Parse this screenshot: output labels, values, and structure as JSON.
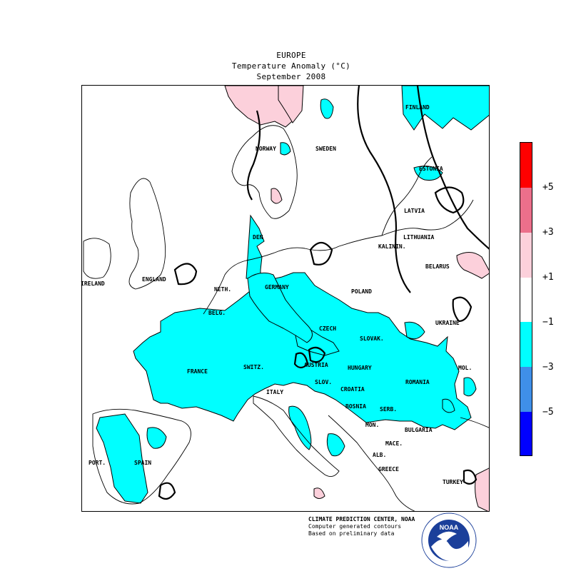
{
  "header": {
    "region": "EUROPE",
    "variable": "Temperature Anomaly (°C)",
    "period": "September 2008"
  },
  "countries": [
    {
      "id": "finland",
      "label": "FINLAND"
    },
    {
      "id": "norway",
      "label": "NORWAY"
    },
    {
      "id": "sweden",
      "label": "SWEDEN"
    },
    {
      "id": "estonia",
      "label": "ESTONIA"
    },
    {
      "id": "latvia",
      "label": "LATVIA"
    },
    {
      "id": "den",
      "label": "DEN"
    },
    {
      "id": "lithuania",
      "label": "LITHUANIA"
    },
    {
      "id": "kalinin",
      "label": "KALININ."
    },
    {
      "id": "belarus",
      "label": "BELARUS"
    },
    {
      "id": "ireland",
      "label": "IRELAND"
    },
    {
      "id": "england",
      "label": "ENGLAND"
    },
    {
      "id": "neth",
      "label": "NETH."
    },
    {
      "id": "germany",
      "label": "GERMANY"
    },
    {
      "id": "poland",
      "label": "POLAND"
    },
    {
      "id": "belg",
      "label": "BELG."
    },
    {
      "id": "ukraine",
      "label": "UKRAINE"
    },
    {
      "id": "czech",
      "label": "CZECH"
    },
    {
      "id": "slovak",
      "label": "SLOVAK."
    },
    {
      "id": "france",
      "label": "FRANCE"
    },
    {
      "id": "switz",
      "label": "SWITZ."
    },
    {
      "id": "austria",
      "label": "AUSTRIA"
    },
    {
      "id": "hungary",
      "label": "HUNGARY"
    },
    {
      "id": "mol",
      "label": "MOL."
    },
    {
      "id": "romania",
      "label": "ROMANIA"
    },
    {
      "id": "slov",
      "label": "SLOV."
    },
    {
      "id": "croatia",
      "label": "CROATIA"
    },
    {
      "id": "italy",
      "label": "ITALY"
    },
    {
      "id": "bosnia",
      "label": "BOSNIA"
    },
    {
      "id": "serb",
      "label": "SERB."
    },
    {
      "id": "mon",
      "label": "MON."
    },
    {
      "id": "bulgaria",
      "label": "BULGARIA"
    },
    {
      "id": "mace",
      "label": "MACE."
    },
    {
      "id": "alb",
      "label": "ALB."
    },
    {
      "id": "port",
      "label": "PORT."
    },
    {
      "id": "spain",
      "label": "SPAIN"
    },
    {
      "id": "greece",
      "label": "GREECE"
    },
    {
      "id": "turkey",
      "label": "TURKEY"
    }
  ],
  "legend": {
    "labels": [
      "+5",
      "+3",
      "+1",
      "−1",
      "−3",
      "−5"
    ],
    "colors": [
      "#ff0000",
      "#ec6f8b",
      "#fcd0db",
      "#ffffff",
      "#00ffff",
      "#3f8fe8",
      "#0000ff"
    ]
  },
  "credits": [
    "CLIMATE PREDICTION CENTER, NOAA",
    "Computer generated contours",
    "Based on preliminary data"
  ],
  "logo": {
    "text": "NOAA",
    "icon": "noaa-logo-icon"
  }
}
